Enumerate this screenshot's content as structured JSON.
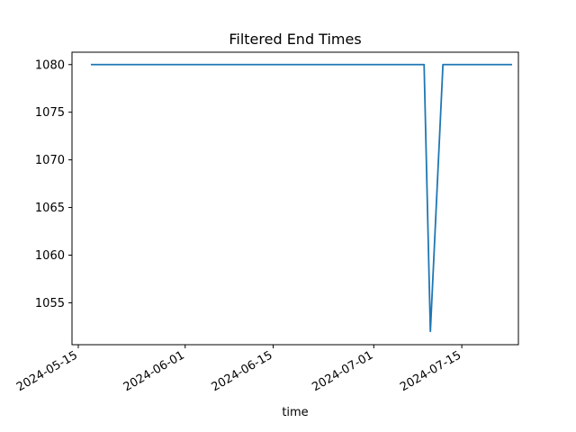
{
  "chart_data": {
    "type": "line",
    "title": "Filtered End Times",
    "xlabel": "time",
    "ylabel": "",
    "x_type": "date",
    "xlim": [
      "2024-05-14",
      "2024-07-24"
    ],
    "ylim": [
      1050.6,
      1081.3
    ],
    "x_ticks": [
      "2024-05-15",
      "2024-06-01",
      "2024-06-15",
      "2024-07-01",
      "2024-07-15"
    ],
    "y_ticks": [
      1055,
      1060,
      1065,
      1070,
      1075,
      1080
    ],
    "grid": false,
    "legend": "none",
    "line_color": "#1f77b4",
    "series": [
      {
        "x": [
          "2024-05-17",
          "2024-07-09",
          "2024-07-10",
          "2024-07-11",
          "2024-07-12",
          "2024-07-23"
        ],
        "y": [
          1080,
          1080,
          1052,
          1066,
          1080,
          1080
        ]
      }
    ]
  }
}
